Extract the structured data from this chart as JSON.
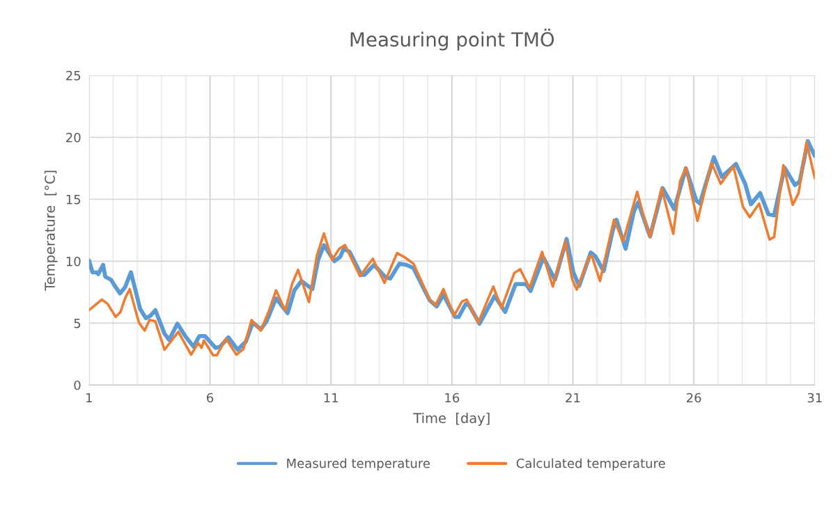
{
  "chart_data": {
    "type": "line",
    "title": "Measuring point TMÖ",
    "xlabel": "Time  [day]",
    "ylabel": "Temperature  [°C]",
    "xlim": [
      1,
      31
    ],
    "ylim": [
      0,
      25
    ],
    "yticks": [
      0,
      5,
      10,
      15,
      20,
      25
    ],
    "xticks": [
      1,
      {
        "value": 2,
        "label": null
      },
      {
        "value": 3,
        "label": null
      },
      {
        "value": 4,
        "label": null
      },
      {
        "value": 5,
        "label": null
      },
      6,
      {
        "value": 7,
        "label": null
      },
      {
        "value": 8,
        "label": null
      },
      {
        "value": 9,
        "label": null
      },
      {
        "value": 10,
        "label": null
      },
      11,
      {
        "value": 12,
        "label": null
      },
      {
        "value": 13,
        "label": null
      },
      {
        "value": 14,
        "label": null
      },
      {
        "value": 15,
        "label": null
      },
      16,
      {
        "value": 17,
        "label": null
      },
      {
        "value": 18,
        "label": null
      },
      {
        "value": 19,
        "label": null
      },
      {
        "value": 20,
        "label": null
      },
      21,
      {
        "value": 22,
        "label": null
      },
      {
        "value": 23,
        "label": null
      },
      {
        "value": 24,
        "label": null
      },
      {
        "value": 25,
        "label": null
      },
      26,
      {
        "value": 27,
        "label": null
      },
      {
        "value": 28,
        "label": null
      },
      {
        "value": 29,
        "label": null
      },
      {
        "value": 30,
        "label": null
      },
      31
    ],
    "grid": true,
    "legend": "bottom",
    "marker": "none",
    "line_style": "solid",
    "series": [
      {
        "name": "Measured temperature",
        "color": "#5b9bd5",
        "x": [
          1.0,
          1.14,
          1.34,
          1.38,
          1.58,
          1.67,
          1.91,
          2.1,
          2.28,
          2.49,
          2.73,
          2.92,
          3.11,
          3.35,
          3.54,
          3.74,
          4.12,
          4.31,
          4.65,
          4.98,
          5.32,
          5.56,
          5.8,
          6.23,
          6.42,
          6.76,
          7.14,
          7.48,
          7.77,
          8.1,
          8.34,
          8.73,
          9.21,
          9.49,
          9.78,
          10.23,
          10.47,
          10.71,
          11.14,
          11.38,
          11.53,
          11.77,
          12.25,
          12.39,
          12.78,
          13.26,
          13.45,
          13.83,
          14.12,
          14.41,
          15.08,
          15.37,
          15.65,
          16.13,
          16.28,
          16.57,
          16.71,
          17.14,
          17.77,
          18.2,
          18.63,
          19.06,
          19.25,
          19.78,
          20.26,
          20.74,
          21.02,
          21.26,
          21.74,
          21.93,
          22.27,
          22.65,
          22.8,
          23.18,
          23.52,
          23.7,
          24.19,
          24.71,
          25.19,
          25.67,
          26.1,
          26.25,
          26.83,
          27.16,
          27.74,
          28.12,
          28.36,
          28.74,
          29.08,
          29.32,
          29.75,
          30.18,
          30.38,
          30.71,
          31.0
        ],
        "values": [
          10.05,
          9.1,
          9.1,
          8.95,
          9.7,
          8.75,
          8.5,
          7.9,
          7.4,
          7.9,
          9.1,
          7.65,
          6.15,
          5.4,
          5.6,
          6.05,
          4.15,
          3.65,
          4.95,
          3.95,
          3.1,
          3.95,
          3.95,
          3.0,
          3.1,
          3.85,
          2.85,
          3.5,
          5.05,
          4.5,
          5.15,
          7.0,
          5.8,
          7.65,
          8.4,
          7.75,
          10.1,
          11.3,
          10.0,
          10.35,
          11.0,
          10.75,
          8.9,
          8.9,
          9.7,
          8.7,
          8.6,
          9.8,
          9.7,
          9.45,
          6.85,
          6.35,
          7.3,
          5.5,
          5.5,
          6.55,
          6.45,
          4.95,
          7.2,
          5.9,
          8.15,
          8.15,
          7.6,
          10.3,
          8.5,
          11.8,
          9.1,
          8.0,
          10.7,
          10.4,
          9.2,
          12.5,
          13.35,
          11.0,
          14.0,
          14.75,
          12.0,
          15.9,
          14.2,
          17.5,
          14.9,
          14.65,
          18.4,
          16.8,
          17.85,
          16.25,
          14.6,
          15.5,
          13.8,
          13.7,
          17.55,
          16.15,
          16.45,
          19.7,
          18.5
        ]
      },
      {
        "name": "Calculated temperature",
        "color": "#ed7d31",
        "x": [
          1.0,
          1.53,
          1.77,
          2.1,
          2.3,
          2.49,
          2.68,
          3.06,
          3.3,
          3.5,
          3.74,
          4.12,
          4.69,
          5.22,
          5.51,
          5.65,
          5.75,
          6.13,
          6.28,
          6.66,
          7.09,
          7.38,
          7.72,
          8.1,
          8.44,
          8.73,
          9.11,
          9.4,
          9.64,
          10.09,
          10.42,
          10.71,
          11.05,
          11.34,
          11.58,
          12.2,
          12.73,
          13.21,
          13.73,
          14.02,
          14.41,
          15.08,
          15.32,
          15.65,
          16.09,
          16.42,
          16.61,
          17.09,
          17.71,
          18.05,
          18.58,
          18.82,
          19.21,
          19.73,
          20.17,
          20.69,
          20.97,
          21.16,
          21.69,
          21.79,
          22.12,
          22.7,
          23.08,
          23.66,
          23.95,
          24.19,
          24.67,
          25.15,
          25.43,
          25.67,
          26.15,
          26.73,
          27.11,
          27.64,
          28.03,
          28.31,
          28.7,
          29.13,
          29.32,
          29.7,
          30.09,
          30.33,
          30.66,
          31.0
        ],
        "values": [
          6.05,
          6.9,
          6.55,
          5.5,
          5.9,
          7.0,
          7.75,
          5.05,
          4.4,
          5.25,
          5.15,
          2.85,
          4.3,
          2.45,
          3.4,
          3.0,
          3.6,
          2.4,
          2.4,
          3.75,
          2.45,
          2.9,
          5.25,
          4.4,
          6.0,
          7.65,
          6.0,
          8.2,
          9.3,
          6.7,
          10.45,
          12.25,
          10.1,
          11.0,
          11.3,
          8.8,
          10.2,
          8.25,
          10.65,
          10.35,
          9.8,
          6.9,
          6.45,
          7.75,
          5.6,
          6.75,
          6.9,
          5.05,
          7.95,
          6.2,
          9.05,
          9.35,
          7.85,
          10.75,
          7.95,
          11.6,
          8.55,
          7.7,
          10.4,
          10.4,
          8.4,
          13.35,
          11.6,
          15.6,
          13.45,
          11.95,
          15.9,
          12.2,
          16.45,
          17.55,
          13.25,
          17.95,
          16.25,
          17.65,
          14.4,
          13.55,
          14.65,
          11.75,
          11.95,
          17.75,
          14.55,
          15.5,
          19.6,
          16.7
        ]
      }
    ]
  }
}
